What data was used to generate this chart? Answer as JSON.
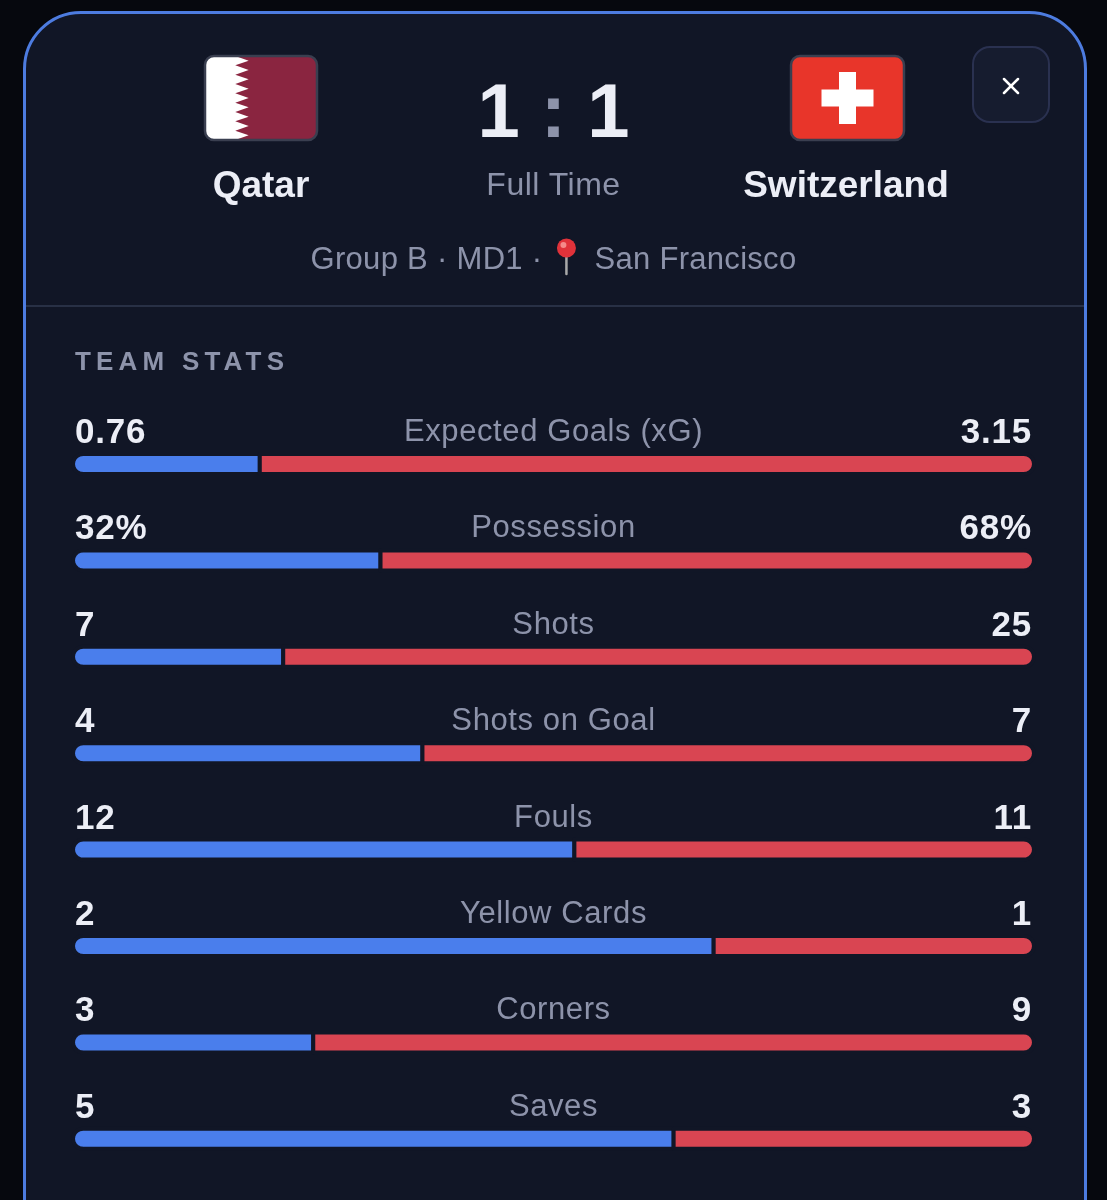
{
  "chart_data": [
    {
      "type": "other",
      "subtitle": "Group B · MD1 · San Francisco",
      "annotations": [
        "Qatar",
        "1 : 1",
        "Switzerland",
        "Full Time"
      ]
    },
    {
      "type": "bar",
      "orientation": "horizontal",
      "stacked": true,
      "title": "TEAM STATS",
      "categories": [
        "Expected Goals (xG)"
      ],
      "series": [
        {
          "color": "#4a7eec",
          "values": [
            0.76
          ]
        },
        {
          "color": "#d94552",
          "values": [
            3.15
          ]
        }
      ],
      "data_labels": true
    },
    {
      "type": "bar",
      "orientation": "horizontal",
      "stacked": true,
      "categories": [
        "Possession"
      ],
      "series": [
        {
          "color": "#4a7eec",
          "values": [
            32
          ],
          "value_labels": [
            "32%"
          ]
        },
        {
          "color": "#d94552",
          "values": [
            68
          ],
          "value_labels": [
            "68%"
          ]
        }
      ]
    },
    {
      "type": "bar",
      "orientation": "horizontal",
      "stacked": true,
      "categories": [
        "Shots"
      ],
      "series": [
        {
          "color": "#4a7eec",
          "values": [
            7
          ]
        },
        {
          "color": "#d94552",
          "values": [
            25
          ]
        }
      ],
      "data_labels": true
    },
    {
      "type": "bar",
      "orientation": "horizontal",
      "stacked": true,
      "categories": [
        "Shots on Goal"
      ],
      "series": [
        {
          "color": "#4a7eec",
          "values": [
            4
          ]
        },
        {
          "color": "#d94552",
          "values": [
            7
          ]
        }
      ],
      "data_labels": true
    },
    {
      "type": "bar",
      "orientation": "horizontal",
      "stacked": true,
      "categories": [
        "Fouls"
      ],
      "series": [
        {
          "color": "#4a7eec",
          "values": [
            12
          ]
        },
        {
          "color": "#d94552",
          "values": [
            11
          ]
        }
      ],
      "data_labels": true
    },
    {
      "type": "bar",
      "orientation": "horizontal",
      "stacked": true,
      "categories": [
        "Yellow Cards"
      ],
      "series": [
        {
          "color": "#4a7eec",
          "values": [
            2
          ]
        },
        {
          "color": "#d94552",
          "values": [
            1
          ]
        }
      ],
      "data_labels": true
    },
    {
      "type": "bar",
      "orientation": "horizontal",
      "stacked": true,
      "categories": [
        "Corners"
      ],
      "series": [
        {
          "color": "#4a7eec",
          "values": [
            3
          ]
        },
        {
          "color": "#d94552",
          "values": [
            9
          ]
        }
      ],
      "data_labels": true
    },
    {
      "type": "bar",
      "orientation": "horizontal",
      "stacked": true,
      "categories": [
        "Saves"
      ],
      "series": [
        {
          "color": "#4a7eec",
          "values": [
            5
          ]
        },
        {
          "color": "#d94552",
          "values": [
            3
          ]
        }
      ],
      "data_labels": true
    }
  ]
}
